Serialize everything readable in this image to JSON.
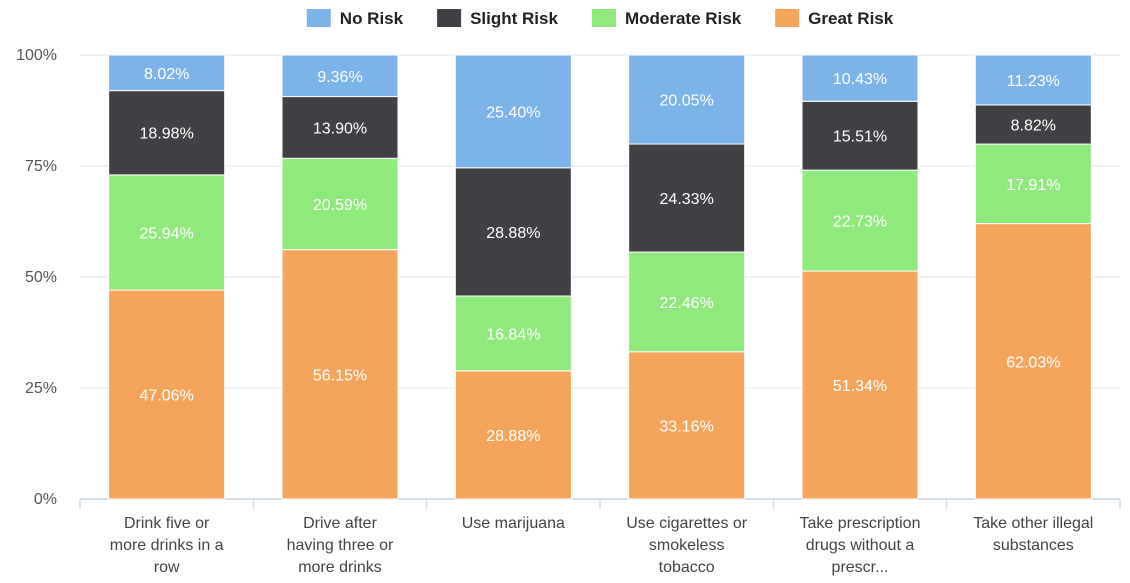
{
  "chart_data": {
    "type": "bar",
    "stacked": true,
    "orientation": "vertical",
    "title": "",
    "xlabel": "",
    "ylabel": "",
    "ylim": [
      0,
      100
    ],
    "y_ticks": [
      "0%",
      "25%",
      "50%",
      "75%",
      "100%"
    ],
    "legend_position": "top-center",
    "grid": true,
    "categories": [
      [
        "Drink five or",
        "more drinks in a",
        "row"
      ],
      [
        "Drive after",
        "having three or",
        "more drinks"
      ],
      [
        "Use marijuana"
      ],
      [
        "Use cigarettes or",
        "smokeless",
        "tobacco"
      ],
      [
        "Take prescription",
        "drugs without a",
        "prescr..."
      ],
      [
        "Take other illegal",
        "substances"
      ]
    ],
    "series": [
      {
        "name": "Great Risk",
        "color": "#f5a45c",
        "label_color": "#ffffff",
        "values": [
          47.06,
          56.15,
          28.88,
          33.16,
          51.34,
          62.03
        ],
        "labels": [
          "47.06%",
          "56.15%",
          "28.88%",
          "33.16%",
          "51.34%",
          "62.03%"
        ]
      },
      {
        "name": "Moderate Risk",
        "color": "#90e97c",
        "label_color": "#ffffff",
        "values": [
          25.94,
          20.59,
          16.84,
          22.46,
          22.73,
          17.91
        ],
        "labels": [
          "25.94%",
          "20.59%",
          "16.84%",
          "22.46%",
          "22.73%",
          "17.91%"
        ]
      },
      {
        "name": "Slight Risk",
        "color": "#414145",
        "label_color": "#ffffff",
        "values": [
          18.98,
          13.9,
          28.88,
          24.33,
          15.51,
          8.82
        ],
        "labels": [
          "18.98%",
          "13.90%",
          "28.88%",
          "24.33%",
          "15.51%",
          "8.82%"
        ]
      },
      {
        "name": "No Risk",
        "color": "#7cb4ea",
        "label_color": "#ffffff",
        "values": [
          8.02,
          9.36,
          25.4,
          20.05,
          10.43,
          11.23
        ],
        "labels": [
          "8.02%",
          "9.36%",
          "25.40%",
          "20.05%",
          "10.43%",
          "11.23%"
        ]
      }
    ],
    "legend_order": [
      "No Risk",
      "Slight Risk",
      "Moderate Risk",
      "Great Risk"
    ]
  }
}
